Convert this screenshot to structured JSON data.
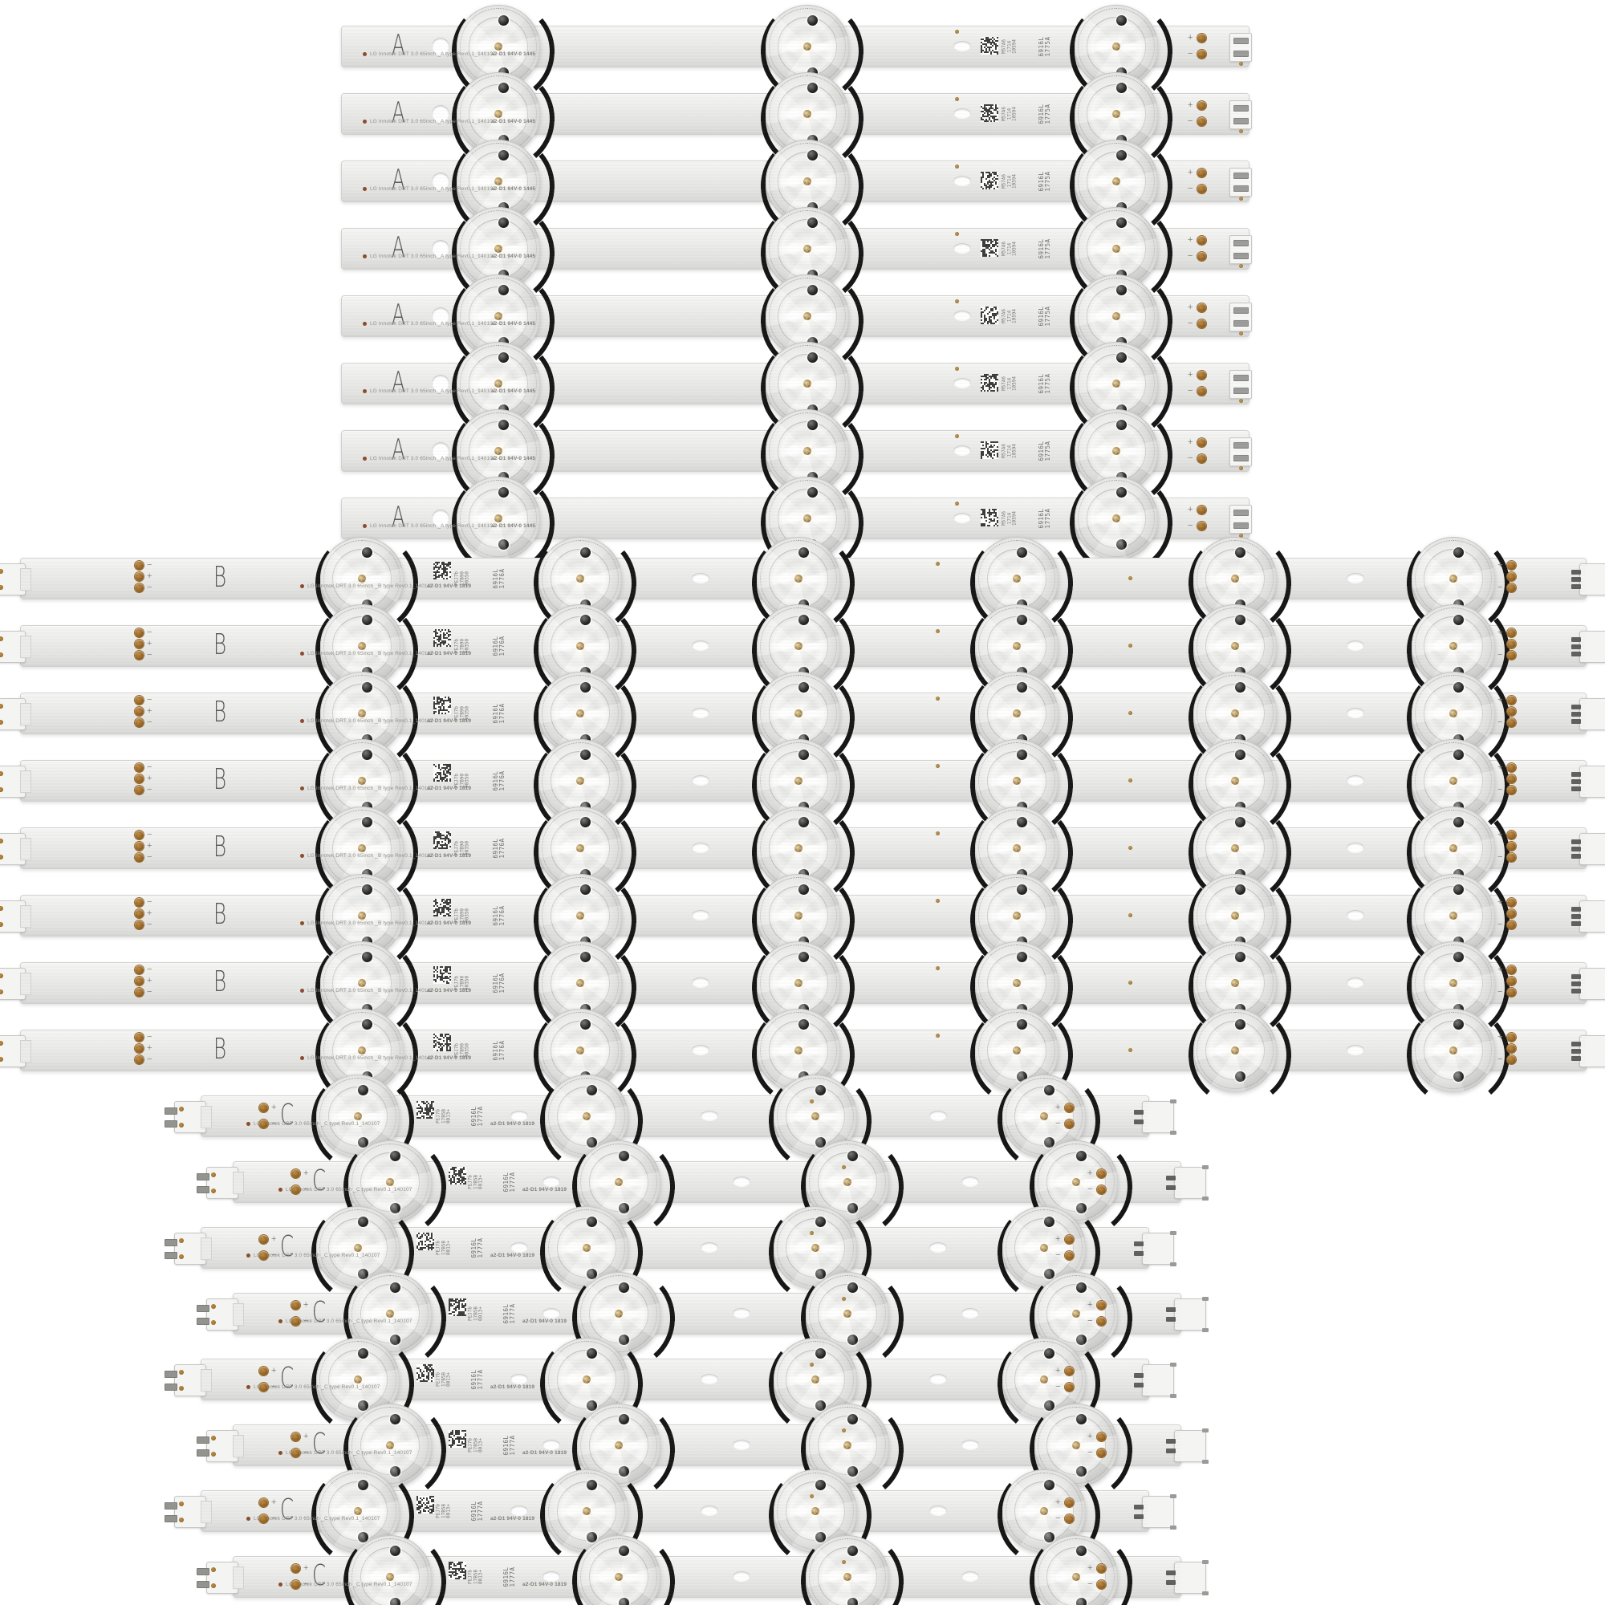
{
  "image_kind": "product-photo-led-backlight-strips",
  "colors": {
    "background": "#ffffff",
    "strip_body": "#ebebe9",
    "contact_clip": "#171717",
    "copper_pad": "#a5762f",
    "silkscreen_text": "#8f8f8b",
    "type_label": "#585856"
  },
  "strip_groups": [
    {
      "type": "A",
      "label": "A",
      "count": 8,
      "lenses_per_strip": 3,
      "print_text": "LG Innotek DRT 3.0 65inch _A type Rev0.1_140107",
      "ul_text": "a2-D1 94V-0 1445",
      "batch_lines": [
        "M57A6",
        "1714",
        "10594"
      ],
      "part_number": "6916L 1775A",
      "right_pad_signs": [
        "+",
        "−"
      ]
    },
    {
      "type": "B",
      "label": "B",
      "count": 8,
      "lenses_per_strip": 6,
      "print_text": "LG Innotek DRT 3.0 65inch _B type Rev0.1_140107",
      "ul_text": "a2-D1 94V-0 1819",
      "batch_lines": [
        "PEJ7b",
        "17B90",
        "00350"
      ],
      "part_number": "6916L 1776A",
      "left_pad_signs": [
        "−",
        "+",
        "−"
      ],
      "right_pad_signs": [
        "+",
        "",
        "−"
      ]
    },
    {
      "type": "C",
      "label": "C",
      "count": 8,
      "lenses_per_strip": 4,
      "print_text": "LG Innotek DRT 3.0 65inch _C type Rev0.1_140107",
      "ul_text": "a2-D1 94V-0 1819",
      "batch_lines": [
        "PEJ7b",
        "17B5B",
        "0013+"
      ],
      "part_number": "6916L 1777A",
      "left_pad_signs": [
        "+",
        "−"
      ],
      "right_pad_signs": [
        "+",
        "−"
      ]
    }
  ]
}
